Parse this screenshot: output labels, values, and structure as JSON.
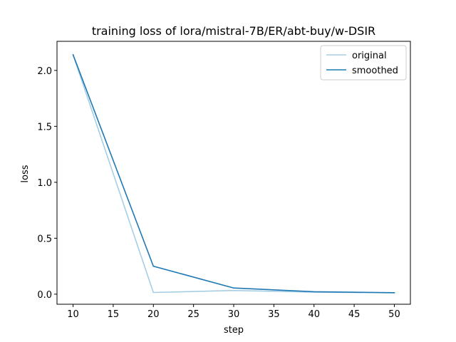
{
  "chart_data": {
    "type": "line",
    "title": "training loss of lora/mistral-7B/ER/abt-buy/w-DSIR",
    "xlabel": "step",
    "ylabel": "loss",
    "xlim": [
      8,
      52
    ],
    "ylim": [
      -0.09,
      2.26
    ],
    "xticks": [
      10,
      15,
      20,
      25,
      30,
      35,
      40,
      45,
      50
    ],
    "yticks": [
      0.0,
      0.5,
      1.0,
      1.5,
      2.0
    ],
    "xtick_labels": [
      "10",
      "15",
      "20",
      "25",
      "30",
      "35",
      "40",
      "45",
      "50"
    ],
    "ytick_labels": [
      "0.0",
      "0.5",
      "1.0",
      "1.5",
      "2.0"
    ],
    "grid": false,
    "legend_position": "top-right",
    "series": [
      {
        "name": "original",
        "color": "#a6cee3",
        "x": [
          10,
          20,
          30,
          40,
          50
        ],
        "y": [
          2.14,
          0.015,
          0.033,
          0.018,
          0.012
        ]
      },
      {
        "name": "smoothed",
        "color": "#1f78b4",
        "x": [
          10,
          20,
          30,
          40,
          50
        ],
        "y": [
          2.14,
          0.25,
          0.055,
          0.022,
          0.013
        ]
      }
    ]
  }
}
